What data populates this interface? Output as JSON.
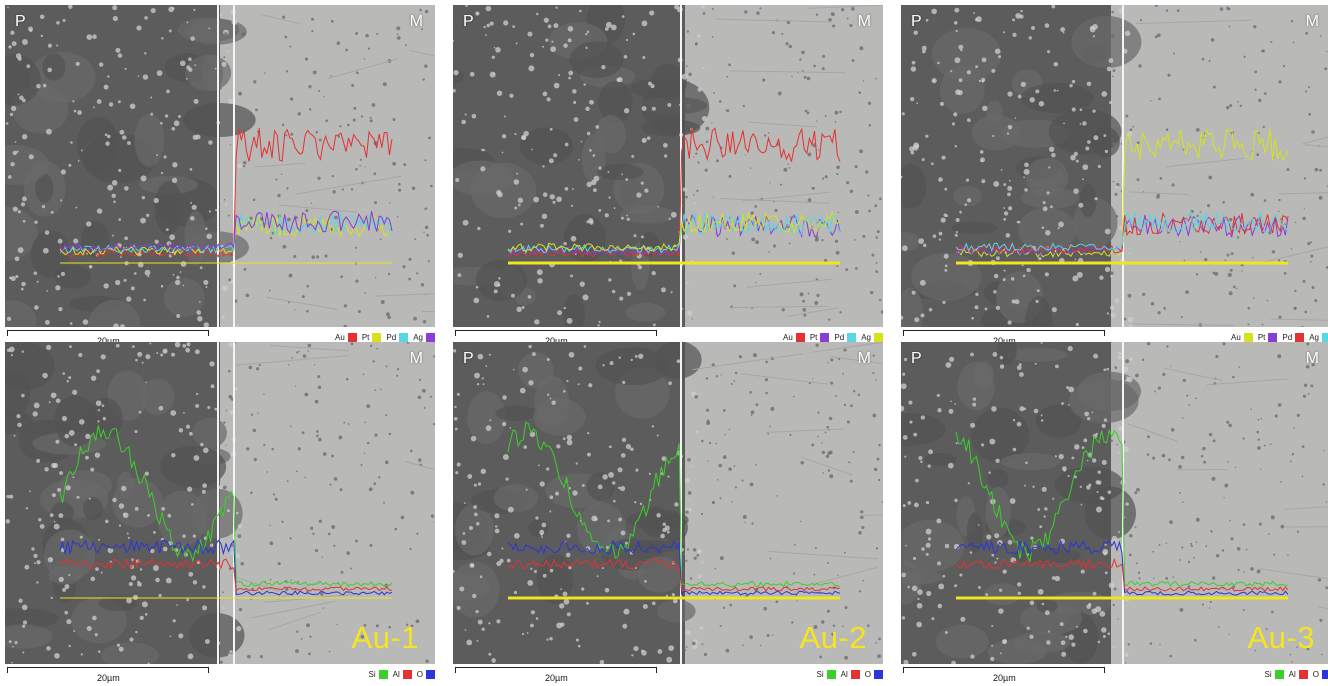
{
  "corner_labels": {
    "left": "P",
    "right": "M"
  },
  "scale_label": "20µm",
  "colors": {
    "Au": "#e33232",
    "Pt": "#d6e21f",
    "Pd": "#57d6e6",
    "Ag": "#8a3cd6",
    "Si": "#3ccf2b",
    "Al": "#e33232",
    "O": "#2c35d6",
    "baseline": "#f1e51b",
    "sample_text": "#f7e41f"
  },
  "panels": [
    {
      "sample": "",
      "legend": [
        {
          "element": "Au",
          "color": "#e33232"
        },
        {
          "element": "Pt",
          "color": "#d6e21f"
        },
        {
          "element": "Pd",
          "color": "#57d6e6"
        },
        {
          "element": "Ag",
          "color": "#8a3cd6"
        }
      ]
    },
    {
      "sample": "",
      "legend": [
        {
          "element": "Au",
          "color": "#e33232"
        },
        {
          "element": "Pt",
          "color": "#8a3cd6"
        },
        {
          "element": "Pd",
          "color": "#57d6e6"
        },
        {
          "element": "Ag",
          "color": "#d6e21f"
        }
      ]
    },
    {
      "sample": "",
      "legend": [
        {
          "element": "Au",
          "color": "#d6e21f"
        },
        {
          "element": "Pt",
          "color": "#8a3cd6"
        },
        {
          "element": "Pd",
          "color": "#e33232"
        },
        {
          "element": "Ag",
          "color": "#57d6e6"
        }
      ]
    },
    {
      "sample": "Au-1",
      "legend": [
        {
          "element": "Si",
          "color": "#3ccf2b"
        },
        {
          "element": "Al",
          "color": "#e33232"
        },
        {
          "element": "O",
          "color": "#2c35d6"
        }
      ]
    },
    {
      "sample": "Au-2",
      "legend": [
        {
          "element": "Si",
          "color": "#3ccf2b"
        },
        {
          "element": "Al",
          "color": "#e33232"
        },
        {
          "element": "O",
          "color": "#2c35d6"
        }
      ]
    },
    {
      "sample": "Au-3",
      "legend": [
        {
          "element": "Si",
          "color": "#3ccf2b"
        },
        {
          "element": "Al",
          "color": "#e33232"
        },
        {
          "element": "O",
          "color": "#2c35d6"
        }
      ]
    }
  ]
}
